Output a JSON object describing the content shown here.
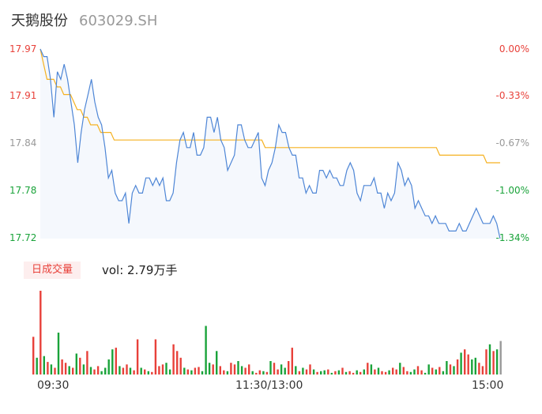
{
  "header": {
    "name": "天鹅股份",
    "code": "603029.SH"
  },
  "chart_data": {
    "type": "line",
    "prev_close": 17.97,
    "price_ticks": [
      "17.97",
      "17.91",
      "17.84",
      "17.78",
      "17.72"
    ],
    "pct_ticks": [
      "0.00%",
      "-0.33%",
      "-0.67%",
      "-1.00%",
      "-1.34%"
    ],
    "ylim": [
      17.72,
      17.97
    ],
    "x_ticks": [
      "09:30",
      "11:30/13:00",
      "15:00"
    ],
    "colors": {
      "price": "#4e86d6",
      "avg": "#f5b120",
      "up": "#e8413a",
      "down": "#1aa33a",
      "neutral": "#999999"
    },
    "price": [
      17.97,
      17.96,
      17.96,
      17.93,
      17.88,
      17.94,
      17.93,
      17.95,
      17.93,
      17.9,
      17.87,
      17.82,
      17.86,
      17.89,
      17.91,
      17.93,
      17.9,
      17.88,
      17.87,
      17.84,
      17.8,
      17.81,
      17.78,
      17.77,
      17.77,
      17.78,
      17.74,
      17.78,
      17.79,
      17.78,
      17.78,
      17.8,
      17.8,
      17.79,
      17.8,
      17.79,
      17.8,
      17.77,
      17.77,
      17.78,
      17.82,
      17.85,
      17.86,
      17.84,
      17.84,
      17.86,
      17.83,
      17.83,
      17.84,
      17.88,
      17.88,
      17.86,
      17.88,
      17.85,
      17.84,
      17.81,
      17.82,
      17.83,
      17.87,
      17.87,
      17.85,
      17.84,
      17.84,
      17.85,
      17.86,
      17.8,
      17.79,
      17.81,
      17.82,
      17.84,
      17.87,
      17.86,
      17.86,
      17.84,
      17.83,
      17.83,
      17.8,
      17.8,
      17.78,
      17.79,
      17.78,
      17.78,
      17.81,
      17.81,
      17.8,
      17.81,
      17.8,
      17.8,
      17.79,
      17.79,
      17.81,
      17.82,
      17.81,
      17.78,
      17.77,
      17.79,
      17.79,
      17.79,
      17.8,
      17.78,
      17.78,
      17.76,
      17.78,
      17.77,
      17.78,
      17.82,
      17.81,
      17.79,
      17.8,
      17.79,
      17.76,
      17.77,
      17.76,
      17.75,
      17.75,
      17.74,
      17.75,
      17.74,
      17.74,
      17.74,
      17.73,
      17.73,
      17.73,
      17.74,
      17.73,
      17.73,
      17.74,
      17.75,
      17.76,
      17.75,
      17.74,
      17.74,
      17.74,
      17.75,
      17.74,
      17.72
    ],
    "avg": [
      17.97,
      17.95,
      17.93,
      17.93,
      17.93,
      17.92,
      17.92,
      17.91,
      17.91,
      17.91,
      17.9,
      17.89,
      17.89,
      17.88,
      17.88,
      17.87,
      17.87,
      17.87,
      17.86,
      17.86,
      17.86,
      17.86,
      17.85,
      17.85,
      17.85,
      17.85,
      17.85,
      17.85,
      17.85,
      17.85,
      17.85,
      17.85,
      17.85,
      17.85,
      17.85,
      17.85,
      17.85,
      17.85,
      17.85,
      17.85,
      17.85,
      17.85,
      17.85,
      17.85,
      17.85,
      17.85,
      17.85,
      17.85,
      17.85,
      17.85,
      17.85,
      17.85,
      17.85,
      17.85,
      17.85,
      17.85,
      17.85,
      17.85,
      17.85,
      17.85,
      17.85,
      17.85,
      17.85,
      17.85,
      17.85,
      17.85,
      17.85,
      17.84,
      17.84,
      17.84,
      17.84,
      17.84,
      17.84,
      17.84,
      17.84,
      17.84,
      17.84,
      17.84,
      17.84,
      17.84,
      17.84,
      17.84,
      17.84,
      17.84,
      17.84,
      17.84,
      17.84,
      17.84,
      17.84,
      17.84,
      17.84,
      17.84,
      17.84,
      17.84,
      17.84,
      17.84,
      17.84,
      17.84,
      17.84,
      17.84,
      17.84,
      17.84,
      17.84,
      17.84,
      17.84,
      17.84,
      17.84,
      17.84,
      17.84,
      17.84,
      17.84,
      17.84,
      17.84,
      17.84,
      17.84,
      17.84,
      17.84,
      17.84,
      17.84,
      17.83,
      17.83,
      17.83,
      17.83,
      17.83,
      17.83,
      17.83,
      17.83,
      17.83,
      17.83,
      17.83,
      17.83,
      17.83,
      17.83,
      17.82,
      17.82,
      17.82,
      17.82,
      17.82
    ],
    "volume_label": "日成交量",
    "volume_text": "vol: 2.79万手",
    "volume": [
      {
        "v": 45,
        "c": "up"
      },
      {
        "v": 20,
        "c": "down"
      },
      {
        "v": 100,
        "c": "up"
      },
      {
        "v": 22,
        "c": "down"
      },
      {
        "v": 15,
        "c": "up"
      },
      {
        "v": 12,
        "c": "down"
      },
      {
        "v": 8,
        "c": "up"
      },
      {
        "v": 50,
        "c": "down"
      },
      {
        "v": 18,
        "c": "up"
      },
      {
        "v": 14,
        "c": "up"
      },
      {
        "v": 10,
        "c": "down"
      },
      {
        "v": 8,
        "c": "up"
      },
      {
        "v": 25,
        "c": "down"
      },
      {
        "v": 20,
        "c": "up"
      },
      {
        "v": 12,
        "c": "down"
      },
      {
        "v": 28,
        "c": "up"
      },
      {
        "v": 9,
        "c": "down"
      },
      {
        "v": 6,
        "c": "up"
      },
      {
        "v": 10,
        "c": "up"
      },
      {
        "v": 4,
        "c": "down"
      },
      {
        "v": 8,
        "c": "down"
      },
      {
        "v": 18,
        "c": "down"
      },
      {
        "v": 30,
        "c": "down"
      },
      {
        "v": 32,
        "c": "up"
      },
      {
        "v": 10,
        "c": "down"
      },
      {
        "v": 8,
        "c": "up"
      },
      {
        "v": 12,
        "c": "up"
      },
      {
        "v": 8,
        "c": "down"
      },
      {
        "v": 5,
        "c": "up"
      },
      {
        "v": 42,
        "c": "up"
      },
      {
        "v": 8,
        "c": "down"
      },
      {
        "v": 6,
        "c": "up"
      },
      {
        "v": 4,
        "c": "down"
      },
      {
        "v": 3,
        "c": "up"
      },
      {
        "v": 42,
        "c": "up"
      },
      {
        "v": 10,
        "c": "up"
      },
      {
        "v": 12,
        "c": "up"
      },
      {
        "v": 14,
        "c": "down"
      },
      {
        "v": 6,
        "c": "down"
      },
      {
        "v": 36,
        "c": "up"
      },
      {
        "v": 28,
        "c": "up"
      },
      {
        "v": 20,
        "c": "up"
      },
      {
        "v": 8,
        "c": "down"
      },
      {
        "v": 6,
        "c": "up"
      },
      {
        "v": 5,
        "c": "down"
      },
      {
        "v": 8,
        "c": "up"
      },
      {
        "v": 9,
        "c": "up"
      },
      {
        "v": 4,
        "c": "down"
      },
      {
        "v": 58,
        "c": "down"
      },
      {
        "v": 14,
        "c": "down"
      },
      {
        "v": 12,
        "c": "up"
      },
      {
        "v": 28,
        "c": "down"
      },
      {
        "v": 10,
        "c": "up"
      },
      {
        "v": 5,
        "c": "up"
      },
      {
        "v": 4,
        "c": "down"
      },
      {
        "v": 14,
        "c": "up"
      },
      {
        "v": 12,
        "c": "up"
      },
      {
        "v": 16,
        "c": "down"
      },
      {
        "v": 10,
        "c": "down"
      },
      {
        "v": 8,
        "c": "up"
      },
      {
        "v": 12,
        "c": "up"
      },
      {
        "v": 4,
        "c": "down"
      },
      {
        "v": 2,
        "c": "up"
      },
      {
        "v": 5,
        "c": "up"
      },
      {
        "v": 4,
        "c": "down"
      },
      {
        "v": 3,
        "c": "up"
      },
      {
        "v": 16,
        "c": "down"
      },
      {
        "v": 14,
        "c": "up"
      },
      {
        "v": 6,
        "c": "up"
      },
      {
        "v": 12,
        "c": "down"
      },
      {
        "v": 8,
        "c": "down"
      },
      {
        "v": 16,
        "c": "up"
      },
      {
        "v": 32,
        "c": "up"
      },
      {
        "v": 10,
        "c": "down"
      },
      {
        "v": 4,
        "c": "up"
      },
      {
        "v": 8,
        "c": "down"
      },
      {
        "v": 6,
        "c": "up"
      },
      {
        "v": 12,
        "c": "up"
      },
      {
        "v": 6,
        "c": "down"
      },
      {
        "v": 3,
        "c": "up"
      },
      {
        "v": 4,
        "c": "down"
      },
      {
        "v": 5,
        "c": "down"
      },
      {
        "v": 6,
        "c": "up"
      },
      {
        "v": 2,
        "c": "down"
      },
      {
        "v": 4,
        "c": "up"
      },
      {
        "v": 5,
        "c": "down"
      },
      {
        "v": 8,
        "c": "up"
      },
      {
        "v": 3,
        "c": "down"
      },
      {
        "v": 4,
        "c": "up"
      },
      {
        "v": 2,
        "c": "up"
      },
      {
        "v": 5,
        "c": "down"
      },
      {
        "v": 3,
        "c": "up"
      },
      {
        "v": 6,
        "c": "down"
      },
      {
        "v": 14,
        "c": "up"
      },
      {
        "v": 12,
        "c": "down"
      },
      {
        "v": 6,
        "c": "up"
      },
      {
        "v": 8,
        "c": "down"
      },
      {
        "v": 4,
        "c": "up"
      },
      {
        "v": 3,
        "c": "up"
      },
      {
        "v": 5,
        "c": "down"
      },
      {
        "v": 8,
        "c": "up"
      },
      {
        "v": 6,
        "c": "up"
      },
      {
        "v": 14,
        "c": "down"
      },
      {
        "v": 9,
        "c": "up"
      },
      {
        "v": 4,
        "c": "up"
      },
      {
        "v": 3,
        "c": "down"
      },
      {
        "v": 6,
        "c": "down"
      },
      {
        "v": 10,
        "c": "up"
      },
      {
        "v": 5,
        "c": "up"
      },
      {
        "v": 2,
        "c": "down"
      },
      {
        "v": 12,
        "c": "down"
      },
      {
        "v": 8,
        "c": "up"
      },
      {
        "v": 6,
        "c": "down"
      },
      {
        "v": 9,
        "c": "up"
      },
      {
        "v": 4,
        "c": "down"
      },
      {
        "v": 16,
        "c": "down"
      },
      {
        "v": 12,
        "c": "up"
      },
      {
        "v": 10,
        "c": "down"
      },
      {
        "v": 18,
        "c": "up"
      },
      {
        "v": 26,
        "c": "down"
      },
      {
        "v": 30,
        "c": "up"
      },
      {
        "v": 24,
        "c": "up"
      },
      {
        "v": 18,
        "c": "down"
      },
      {
        "v": 20,
        "c": "down"
      },
      {
        "v": 14,
        "c": "up"
      },
      {
        "v": 10,
        "c": "up"
      },
      {
        "v": 30,
        "c": "up"
      },
      {
        "v": 36,
        "c": "down"
      },
      {
        "v": 28,
        "c": "up"
      },
      {
        "v": 30,
        "c": "down"
      },
      {
        "v": 40,
        "c": "neutral"
      }
    ]
  }
}
